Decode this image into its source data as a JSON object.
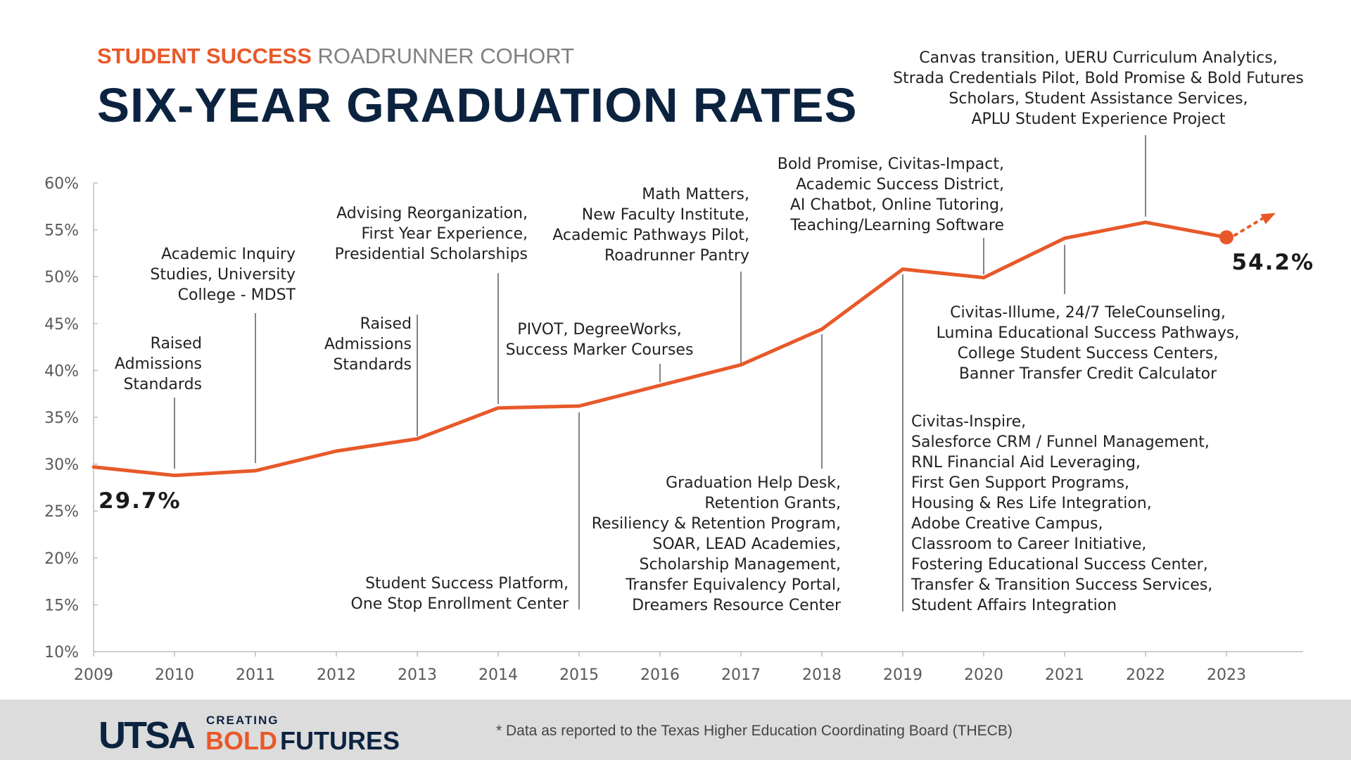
{
  "header": {
    "kicker_accent": "STUDENT SUCCESS",
    "kicker_rest": "ROADRUNNER COHORT",
    "title": "SIX-YEAR GRADUATION RATES"
  },
  "chart_data": {
    "type": "line",
    "title": "SIX-YEAR GRADUATION RATES",
    "x": [
      2009,
      2010,
      2011,
      2012,
      2013,
      2014,
      2015,
      2016,
      2017,
      2018,
      2019,
      2020,
      2021,
      2022,
      2023
    ],
    "values": [
      29.7,
      28.8,
      29.3,
      31.4,
      32.7,
      36.0,
      36.2,
      38.4,
      40.6,
      44.4,
      50.8,
      49.9,
      54.1,
      55.8,
      54.2
    ],
    "ylim": [
      10,
      60
    ],
    "yticks": [
      10,
      15,
      20,
      25,
      30,
      35,
      40,
      45,
      50,
      55,
      60
    ],
    "ytick_labels": [
      "10%",
      "15%",
      "20%",
      "25%",
      "30%",
      "35%",
      "40%",
      "45%",
      "50%",
      "55%",
      "60%"
    ],
    "xtick_labels": [
      "2009",
      "2010",
      "2011",
      "2012",
      "2013",
      "2014",
      "2015",
      "2016",
      "2017",
      "2018",
      "2019",
      "2020",
      "2021",
      "2022",
      "2023"
    ],
    "start_label": "29.7%",
    "end_label": "54.2%",
    "trend_projection": [
      {
        "x": 2023,
        "y": 54.2
      },
      {
        "x": 2024,
        "y": 56.8
      }
    ],
    "grid": false,
    "annotations": [
      {
        "year": 2010,
        "lines": [
          "Raised",
          "Admissions",
          "Standards"
        ]
      },
      {
        "year": 2011,
        "lines": [
          "Academic Inquiry",
          "Studies, University",
          "College - MDST"
        ]
      },
      {
        "year": 2013,
        "lines": [
          "Raised",
          "Admissions",
          "Standards"
        ]
      },
      {
        "year": 2014,
        "lines": [
          "Advising Reorganization,",
          "First Year Experience,",
          "Presidential Scholarships"
        ]
      },
      {
        "year": 2015,
        "lines": [
          "Student Success Platform,",
          "One Stop Enrollment Center"
        ]
      },
      {
        "year": 2016,
        "lines": [
          "PIVOT, DegreeWorks,",
          "Success Marker Courses"
        ]
      },
      {
        "year": 2017,
        "lines": [
          "Math Matters,",
          "New Faculty Institute,",
          "Academic Pathways Pilot,",
          "Roadrunner Pantry"
        ]
      },
      {
        "year": 2018,
        "lines": [
          "Graduation Help Desk,",
          "Retention Grants,",
          "Resiliency & Retention Program,",
          "SOAR, LEAD Academies,",
          "Scholarship Management,",
          "Transfer Equivalency Portal,",
          "Dreamers Resource Center"
        ]
      },
      {
        "year": 2019,
        "lines": [
          "Civitas-Inspire,",
          "Salesforce CRM / Funnel Management,",
          "RNL Financial Aid Leveraging,",
          "First Gen Support Programs,",
          "Housing & Res Life Integration,",
          "Adobe Creative Campus,",
          "Classroom to Career Initiative,",
          "Fostering Educational Success Center,",
          "Transfer & Transition Success Services,",
          "Student Affairs Integration"
        ]
      },
      {
        "year": 2020,
        "lines": [
          "Bold Promise, Civitas-Impact,",
          "Academic Success District,",
          "AI Chatbot, Online Tutoring,",
          "Teaching/Learning Software"
        ]
      },
      {
        "year": 2021,
        "lines": [
          "Civitas-Illume, 24/7 TeleCounseling,",
          "Lumina Educational Success Pathways,",
          "College Student Success Centers,",
          "Banner Transfer Credit Calculator"
        ]
      },
      {
        "year": 2022,
        "lines": [
          "Canvas transition, UERU Curriculum Analytics,",
          "Strada Credentials Pilot, Bold Promise & Bold Futures",
          "Scholars, Student Assistance Services,",
          "APLU Student Experience Project"
        ]
      }
    ]
  },
  "colors": {
    "accent": "#e8592a",
    "navy": "#0c2340",
    "gray_text": "#808080",
    "axis": "#bfbfbf",
    "footer_bg": "#dcdcdc"
  },
  "footer": {
    "logo_utsa": "UTSA",
    "logo_creating": "CREATING",
    "logo_bold": "BOLD",
    "logo_futures": "FUTURES",
    "footnote": "* Data as reported to the Texas Higher Education Coordinating Board (THECB)"
  }
}
